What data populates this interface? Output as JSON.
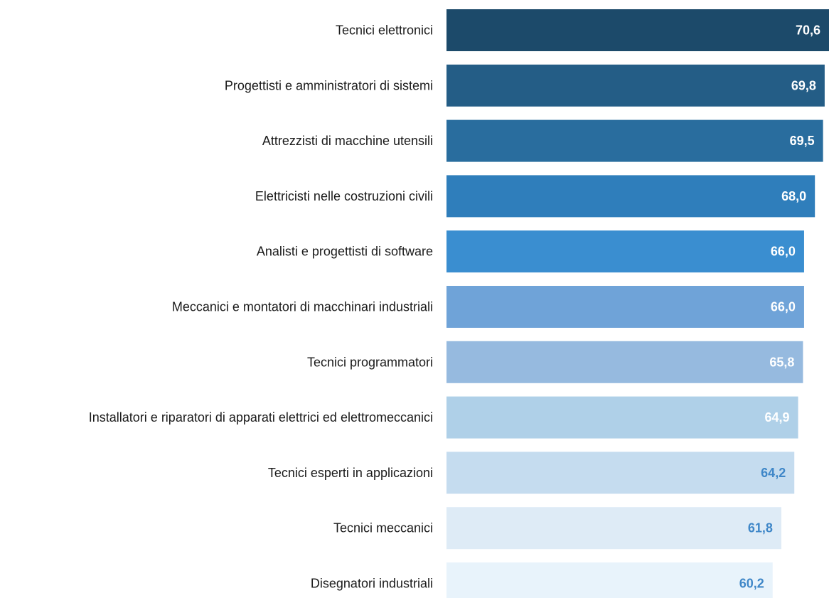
{
  "chart_data": {
    "type": "bar",
    "orientation": "horizontal",
    "title": "",
    "xlabel": "",
    "ylabel": "",
    "grid": false,
    "legend": "none",
    "xlim": [
      0,
      70.6
    ],
    "categories": [
      "Tecnici elettronici",
      "Progettisti e amministratori di sistemi",
      "Attrezzisti di macchine utensili",
      "Elettricisti nelle costruzioni civili",
      "Analisti e progettisti di software",
      "Meccanici e montatori di macchinari industriali",
      "Tecnici programmatori",
      "Installatori e riparatori di apparati elettrici ed elettromeccanici",
      "Tecnici esperti in applicazioni",
      "Tecnici meccanici",
      "Disegnatori industriali"
    ],
    "values": [
      70.6,
      69.8,
      69.5,
      68.0,
      66.0,
      66.0,
      65.8,
      64.9,
      64.2,
      61.8,
      60.2
    ],
    "value_labels": [
      "70,6",
      "69,8",
      "69,5",
      "68,0",
      "66,0",
      "66,0",
      "65,8",
      "64,9",
      "64,2",
      "61,8",
      "60,2"
    ],
    "bar_colors": [
      "#1c4a6a",
      "#245d86",
      "#296d9e",
      "#2f7ebb",
      "#3a8ed0",
      "#6fa3d8",
      "#96badf",
      "#afd0e8",
      "#c5dcef",
      "#deebf6",
      "#e8f3fb"
    ],
    "value_label_colors": [
      "#ffffff",
      "#ffffff",
      "#ffffff",
      "#ffffff",
      "#ffffff",
      "#ffffff",
      "#ffffff",
      "#ffffff",
      "#3f87c8",
      "#3f87c8",
      "#3f87c8"
    ]
  }
}
